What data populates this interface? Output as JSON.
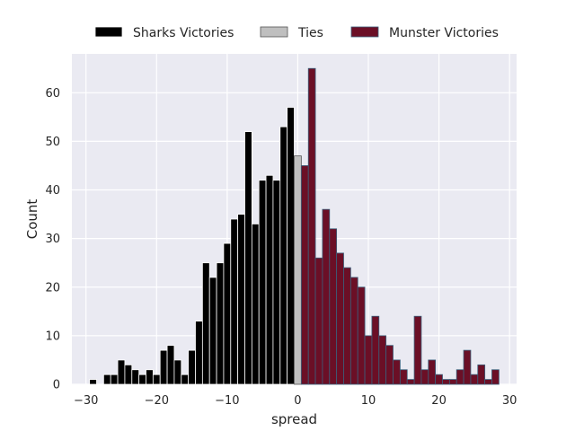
{
  "chart_data": {
    "type": "bar",
    "xlabel": "spread",
    "ylabel": "Count",
    "xlim": [
      -32,
      31
    ],
    "ylim": [
      0,
      68
    ],
    "xticks": [
      -30,
      -20,
      -10,
      0,
      10,
      20,
      30
    ],
    "xtick_labels": [
      "−30",
      "−20",
      "−10",
      "0",
      "10",
      "20",
      "30"
    ],
    "yticks": [
      0,
      10,
      20,
      30,
      40,
      50,
      60
    ],
    "ytick_labels": [
      "0",
      "10",
      "20",
      "30",
      "40",
      "50",
      "60"
    ],
    "grid": true,
    "legend_position": "top",
    "series": [
      {
        "name": "Sharks Victories",
        "color": "#000000",
        "edge": "#ffffff",
        "x": [
          -29,
          -27,
          -26,
          -25,
          -24,
          -23,
          -22,
          -21,
          -20,
          -19,
          -18,
          -17,
          -16,
          -15,
          -14,
          -13,
          -12,
          -11,
          -10,
          -9,
          -8,
          -7,
          -6,
          -5,
          -4,
          -3,
          -2,
          -1
        ],
        "values": [
          1,
          2,
          2,
          5,
          4,
          3,
          2,
          3,
          2,
          7,
          8,
          5,
          2,
          7,
          13,
          25,
          22,
          25,
          29,
          34,
          35,
          52,
          33,
          42,
          43,
          42,
          53,
          57
        ]
      },
      {
        "name": "Ties",
        "color": "#bfbfbf",
        "edge": "#555555",
        "x": [
          0
        ],
        "values": [
          47
        ]
      },
      {
        "name": "Munster Victories",
        "color": "#6b0f26",
        "edge": "#3b5f7a",
        "x": [
          1,
          2,
          3,
          4,
          5,
          6,
          7,
          8,
          9,
          10,
          11,
          12,
          13,
          14,
          15,
          16,
          17,
          18,
          19,
          20,
          21,
          22,
          23,
          24,
          25,
          26,
          27,
          28
        ],
        "values": [
          45,
          65,
          26,
          36,
          32,
          27,
          24,
          22,
          20,
          10,
          14,
          10,
          8,
          5,
          3,
          1,
          14,
          3,
          5,
          2,
          1,
          1,
          3,
          7,
          2,
          4,
          1,
          3
        ]
      }
    ]
  }
}
